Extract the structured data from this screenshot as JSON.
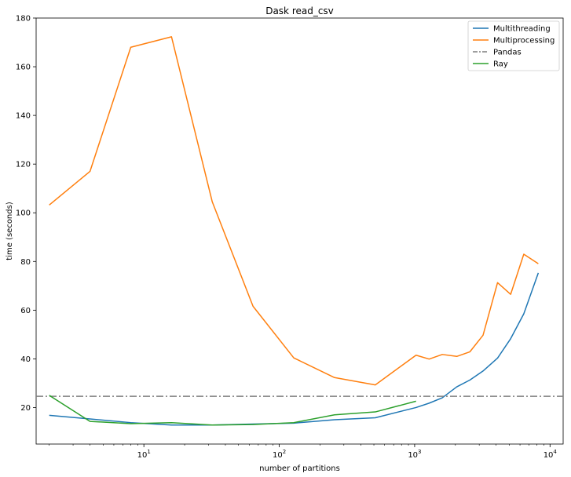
{
  "chart_data": {
    "type": "line",
    "title": "Dask read_csv",
    "xlabel": "number of partitions",
    "ylabel": "time (seconds)",
    "xscale": "log",
    "xlim": [
      1.6,
      12500
    ],
    "ylim": [
      5,
      180
    ],
    "yticks": [
      20,
      40,
      60,
      80,
      100,
      120,
      140,
      160,
      180
    ],
    "xticks": [
      {
        "value": 10,
        "base": "10",
        "exp": "1"
      },
      {
        "value": 100,
        "base": "10",
        "exp": "2"
      },
      {
        "value": 1000,
        "base": "10",
        "exp": "3"
      },
      {
        "value": 10000,
        "base": "10",
        "exp": "4"
      }
    ],
    "legend_position": "top-right",
    "grid": false,
    "series": [
      {
        "name": "Multithreading",
        "color": "#1f77b4",
        "style": "solid",
        "x": [
          2,
          4,
          8,
          16,
          32,
          64,
          128,
          256,
          512,
          1024,
          1280,
          1600,
          2048,
          2560,
          3200,
          4096,
          5120,
          6400,
          8192
        ],
        "y": [
          16.8,
          15.3,
          13.8,
          12.8,
          12.8,
          13.2,
          13.6,
          15.0,
          15.8,
          20.0,
          21.8,
          24.0,
          28.5,
          31.3,
          35.0,
          40.3,
          48.3,
          58.5,
          75.3
        ]
      },
      {
        "name": "Multiprocessing",
        "color": "#ff7f0e",
        "style": "solid",
        "x": [
          2,
          4,
          8,
          16,
          32,
          64,
          128,
          256,
          512,
          1024,
          1280,
          1600,
          2048,
          2560,
          3200,
          4096,
          5120,
          6400,
          8192
        ],
        "y": [
          103.2,
          117.0,
          168.0,
          172.3,
          104.5,
          61.6,
          40.4,
          32.3,
          29.3,
          41.5,
          39.9,
          41.8,
          41.0,
          42.9,
          49.7,
          71.3,
          66.5,
          83.0,
          79.1
        ]
      },
      {
        "name": "Pandas",
        "color": "#7f7f7f",
        "style": "dashdot",
        "constant": 24.6
      },
      {
        "name": "Ray",
        "color": "#2ca02c",
        "style": "solid",
        "x": [
          2,
          4,
          8,
          16,
          32,
          64,
          128,
          256,
          512,
          1024
        ],
        "y": [
          25.0,
          14.3,
          13.4,
          13.8,
          12.8,
          13.0,
          13.8,
          17.0,
          18.2,
          22.6
        ]
      }
    ]
  }
}
